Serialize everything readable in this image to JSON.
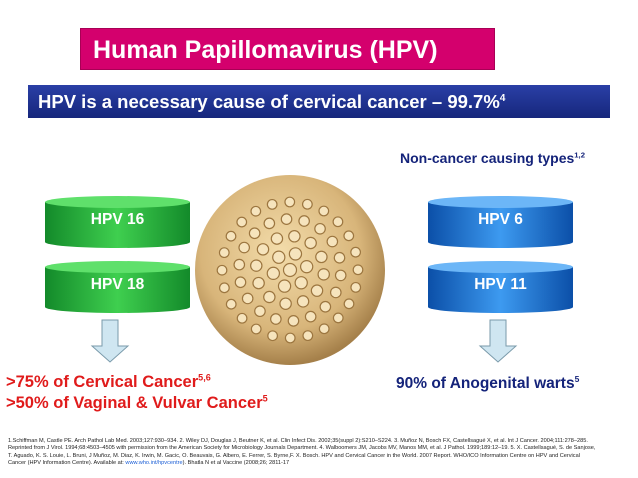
{
  "title": "Human Papillomavirus (HPV)",
  "headline": {
    "text": "HPV is a necessary cause of cervical cancer – 99.7%",
    "sup": "4"
  },
  "non_cancer_label": {
    "text": "Non-cancer causing types",
    "sup": "1,2"
  },
  "high_risk_types": [
    "HPV 16",
    "HPV 18"
  ],
  "low_risk_types": [
    "HPV 6",
    "HPV 11"
  ],
  "high_risk_outcomes": [
    {
      "text": ">75% of Cervical Cancer",
      "sup": "5,6"
    },
    {
      "text": ">50% of Vaginal & Vulvar Cancer",
      "sup": "5"
    }
  ],
  "low_risk_outcome": {
    "text": "90% of Anogenital warts",
    "sup": "5"
  },
  "references": {
    "before": "1.Schiffman M, Castle PE. Arch Pathol Lab Med. 2003;127:930–934. 2. Wiley DJ, Douglas J, Beutner K, et al. Clin Infect Dis. 2002;35(suppl 2):S210–S224. 3. Muñoz N, Bosch FX, Castellsagué X, et al. Int J Cancer. 2004;111:278–285. Reprinted from J Virol. 1994;68:4503–4505 with permission from the American Society for Microbiology Journals Department. 4. Walboomers JM, Jacobs MV, Manos MM, et al. J Pathol. 1999;189:12–19. 5. X. Castellsagué, S. de Sanjose, T. Aguado, K. S. Louie, L. Bruni, J Muñoz, M. Diaz, K. Irwin, M. Gacic, O. Beauvais, G. Albero, E. Ferrer, S. Byrne,F. X. Bosch. HPV and Cervical Cancer in the World. 2007 Report. WHO/ICO Information Centre on HPV and Cervical Cancer (HPV Information Centre). Available at: ",
    "url": "www.who.int/hpvcentre",
    "after": "). Bhatla N et al Vaccine (2008;26; 2811-17"
  }
}
